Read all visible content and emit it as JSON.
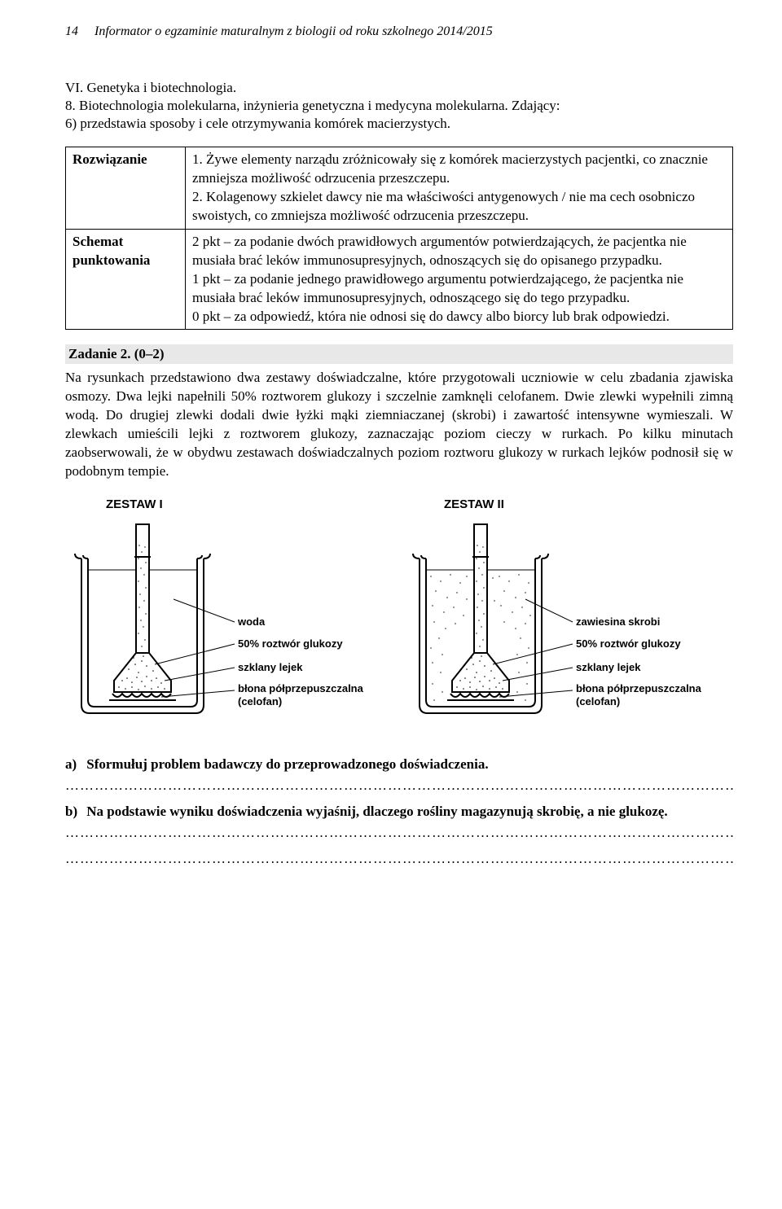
{
  "header": {
    "page_number": "14",
    "text": "Informator o egzaminie maturalnym z biologii od roku szkolnego 2014/2015"
  },
  "section": {
    "roman": "VI. Genetyka i biotechnologia.",
    "sub": "8. Biotechnologia molekularna, inżynieria genetyczna i medycyna molekularna. Zdający:",
    "line": "6) przedstawia sposoby i cele otrzymywania komórek macierzystych."
  },
  "table": {
    "rows": [
      {
        "left": "Rozwiązanie",
        "right": "1. Żywe elementy narządu zróżnicowały się z komórek macierzystych pacjentki, co znacznie zmniejsza możliwość odrzucenia przeszczepu.\n2. Kolagenowy szkielet dawcy nie ma właściwości antygenowych / nie ma cech osobniczo swoistych, co zmniejsza możliwość odrzucenia przeszczepu."
      },
      {
        "left": "Schemat punktowania",
        "right": "2 pkt – za podanie dwóch prawidłowych argumentów potwierdzających, że pacjentka nie musiała brać leków immunosupresyjnych, odnoszących się do opisanego przypadku.\n1 pkt – za podanie jednego prawidłowego argumentu potwierdzającego, że pacjentka nie musiała brać leków immunosupresyjnych, odnoszącego się do tego przypadku.\n0 pkt – za odpowiedź, która nie odnosi się do dawcy albo biorcy lub brak odpowiedzi."
      }
    ]
  },
  "task2": {
    "title": "Zadanie 2. (0–2)",
    "body": "Na rysunkach przedstawiono dwa zestawy doświadczalne, które przygotowali uczniowie w celu zbadania zjawiska osmozy. Dwa lejki napełnili 50% roztworem glukozy i szczelnie zamknęli celofanem. Dwie zlewki wypełnili zimną wodą. Do drugiej zlewki dodali dwie łyżki mąki ziemniaczanej (skrobi) i zawartość intensywne wymieszali. W zlewkach umieścili lejki z roztworem glukozy, zaznaczając poziom cieczy w rurkach. Po kilku minutach zaobserwowali, że w obydwu zestawach doświadczalnych poziom roztworu glukozy w rurkach lejków podnosił się w podobnym tempie."
  },
  "figures": {
    "z1": {
      "title": "ZESTAW I",
      "labels": {
        "l1": "woda",
        "l2": "50% roztwór glukozy",
        "l3": "szklany lejek",
        "l4a": "błona półprzepuszczalna",
        "l4b": "(celofan)"
      },
      "colors": {
        "stroke": "#000000",
        "fill_beaker": "#ffffff",
        "fill_funnel": "#ffffff",
        "stipple": "#000000"
      },
      "line_width": 2
    },
    "z2": {
      "title": "ZESTAW II",
      "labels": {
        "l1": "zawiesina skrobi",
        "l2": "50% roztwór glukozy",
        "l3": "szklany lejek",
        "l4a": "błona półprzepuszczalna",
        "l4b": "(celofan)"
      },
      "colors": {
        "stroke": "#000000",
        "fill_beaker": "#ffffff",
        "fill_funnel": "#ffffff",
        "stipple": "#000000"
      },
      "line_width": 2
    }
  },
  "questions": {
    "a": {
      "letter": "a)",
      "text": "Sformułuj problem badawczy do przeprowadzonego doświadczenia."
    },
    "b": {
      "letter": "b)",
      "text": "Na podstawie wyniku doświadczenia wyjaśnij, dlaczego rośliny magazynują skrobię, a nie glukozę."
    }
  },
  "dotted_line": "……………………………………………………………………………………………………………………………"
}
